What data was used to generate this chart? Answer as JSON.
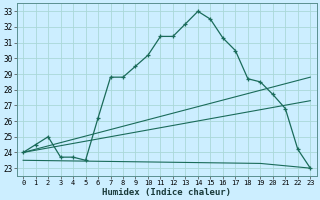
{
  "xlabel": "Humidex (Indice chaleur)",
  "bg_color": "#cceeff",
  "line_color": "#1a6b5a",
  "grid_color": "#aad8d8",
  "xlim": [
    -0.5,
    23.5
  ],
  "ylim": [
    22.5,
    33.5
  ],
  "xticks": [
    0,
    1,
    2,
    3,
    4,
    5,
    6,
    7,
    8,
    9,
    10,
    11,
    12,
    13,
    14,
    15,
    16,
    17,
    18,
    19,
    20,
    21,
    22,
    23
  ],
  "yticks": [
    23,
    24,
    25,
    26,
    27,
    28,
    29,
    30,
    31,
    32,
    33
  ],
  "line1_x": [
    0,
    1,
    2,
    3,
    4,
    5,
    6,
    7,
    8,
    9,
    10,
    11,
    12,
    13,
    14,
    15,
    16,
    17,
    18,
    19,
    20,
    21,
    22,
    23
  ],
  "line1_y": [
    24.0,
    24.5,
    25.0,
    23.7,
    23.7,
    23.5,
    26.2,
    28.8,
    28.8,
    29.5,
    30.2,
    31.4,
    31.4,
    32.2,
    33.0,
    32.5,
    31.3,
    30.5,
    28.7,
    28.5,
    27.7,
    26.8,
    24.2,
    23.0
  ],
  "line2_x": [
    0,
    23
  ],
  "line2_y": [
    24.0,
    28.8
  ],
  "line3_x": [
    0,
    23
  ],
  "line3_y": [
    24.0,
    27.3
  ],
  "line4_x": [
    0,
    19,
    23
  ],
  "line4_y": [
    23.5,
    23.3,
    23.0
  ]
}
